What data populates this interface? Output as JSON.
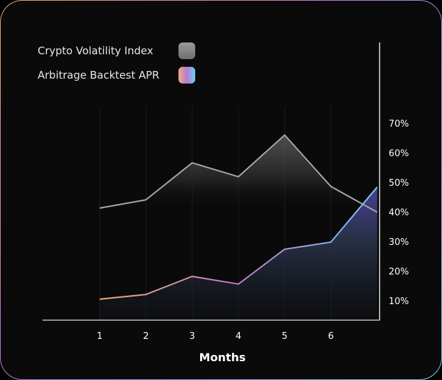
{
  "chart_data": {
    "type": "line",
    "title": "",
    "xlabel": "Months",
    "ylabel": "",
    "x": [
      1,
      2,
      3,
      4,
      5,
      6,
      7
    ],
    "x_tick_labels": [
      "1",
      "2",
      "3",
      "4",
      "5",
      "6"
    ],
    "y_tick_labels": [
      "70%",
      "60%",
      "50%",
      "40%",
      "30%",
      "20%",
      "10%"
    ],
    "y_ticks": [
      70,
      60,
      50,
      40,
      30,
      20,
      10
    ],
    "ylim": [
      10,
      70
    ],
    "grid": "vertical",
    "legend_position": "top-left",
    "series": [
      {
        "name": "Crypto Volatility Index",
        "color": "#a8a8a8",
        "values": [
          41.3,
          44.1,
          56.6,
          51.9,
          66.0,
          48.6,
          39.9
        ]
      },
      {
        "name": "Arbitrage Backtest APR",
        "colors": [
          "#f0b070",
          "#c77ad0",
          "#6fd0f0"
        ],
        "values": [
          10.5,
          12.1,
          18.2,
          15.6,
          27.4,
          29.8,
          48.4
        ]
      }
    ]
  }
}
